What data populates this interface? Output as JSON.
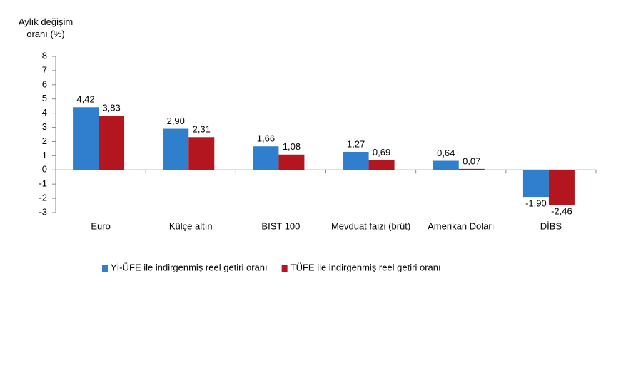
{
  "chart_data": {
    "type": "bar",
    "y_label": "Aylık değişim oranı (%)",
    "categories": [
      "Euro",
      "Külçe altın",
      "BIST 100",
      "Mevduat faizi (brüt)",
      "Amerikan Doları",
      "DİBS"
    ],
    "series": [
      {
        "name": "Yİ-ÜFE ile indirgenmiş reel getiri oranı",
        "color": "#2f7fcc",
        "values": [
          4.42,
          2.9,
          1.66,
          1.27,
          0.64,
          -1.9
        ],
        "value_labels": [
          "4,42",
          "2,90",
          "1,66",
          "1,27",
          "0,64",
          "-1,90"
        ]
      },
      {
        "name": "TÜFE ile indirgenmiş reel getiri oranı",
        "color": "#b3161f",
        "values": [
          3.83,
          2.31,
          1.08,
          0.69,
          0.07,
          -2.46
        ],
        "value_labels": [
          "3,83",
          "2,31",
          "1,08",
          "0,69",
          "0,07",
          "-2,46"
        ]
      }
    ],
    "ylim": [
      -3,
      8
    ],
    "yticks": [
      -3,
      -2,
      -1,
      0,
      1,
      2,
      3,
      4,
      5,
      6,
      7,
      8
    ]
  }
}
